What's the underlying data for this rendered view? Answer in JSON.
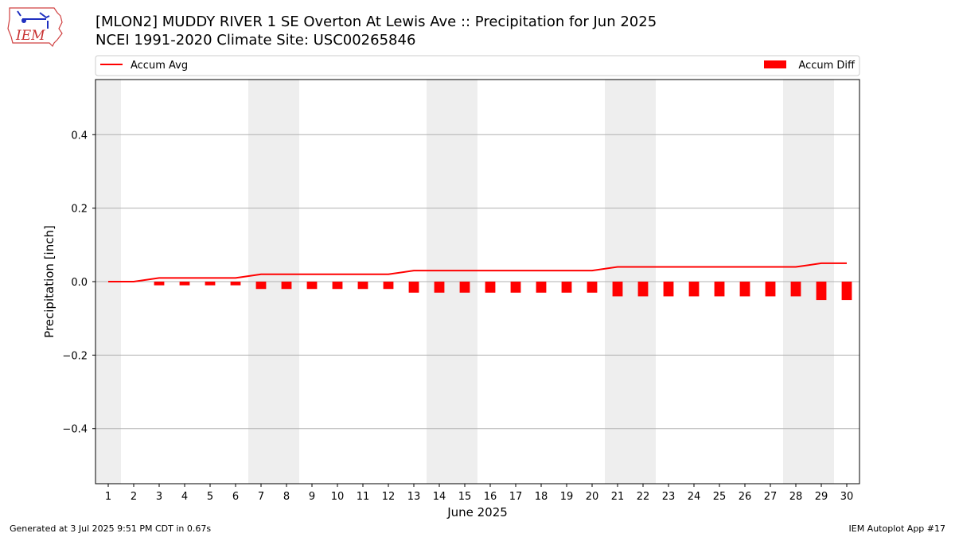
{
  "header": {
    "title_line1": "[MLON2] MUDDY RIVER 1 SE Overton At Lewis Ave :: Precipitation for Jun 2025",
    "title_line2": "NCEI 1991-2020 Climate Site: USC00265846"
  },
  "logo": {
    "text": "IEM",
    "icon": "iem-iowa-logo"
  },
  "footer": {
    "left": "Generated at 3 Jul 2025 9:51 PM CDT in 0.67s",
    "right": "IEM Autoplot App #17"
  },
  "colors": {
    "accum_avg": "#ff0000",
    "accum_diff": "#ff0000",
    "weekend_shade": "#eeeeee",
    "grid": "#b0b0b0"
  },
  "chart_data": {
    "type": "bar",
    "xlabel": "June 2025",
    "ylabel": "Precipitation [inch]",
    "ylim": [
      -0.55,
      0.55
    ],
    "yticks": [
      -0.4,
      -0.2,
      0.0,
      0.2,
      0.4
    ],
    "ytick_labels": [
      "−0.4",
      "−0.2",
      "0.0",
      "0.2",
      "0.4"
    ],
    "grid": "horizontal",
    "legend_placement": "top",
    "categories": [
      1,
      2,
      3,
      4,
      5,
      6,
      7,
      8,
      9,
      10,
      11,
      12,
      13,
      14,
      15,
      16,
      17,
      18,
      19,
      20,
      21,
      22,
      23,
      24,
      25,
      26,
      27,
      28,
      29,
      30
    ],
    "shaded_days": [
      1,
      7,
      8,
      14,
      15,
      21,
      22,
      28,
      29
    ],
    "series": [
      {
        "name": "Accum Avg",
        "kind": "line",
        "values": [
          0.0,
          0.0,
          0.01,
          0.01,
          0.01,
          0.01,
          0.02,
          0.02,
          0.02,
          0.02,
          0.02,
          0.02,
          0.03,
          0.03,
          0.03,
          0.03,
          0.03,
          0.03,
          0.03,
          0.03,
          0.04,
          0.04,
          0.04,
          0.04,
          0.04,
          0.04,
          0.04,
          0.04,
          0.05,
          0.05
        ]
      },
      {
        "name": "Accum Diff",
        "kind": "bar",
        "values": [
          0.0,
          0.0,
          -0.01,
          -0.01,
          -0.01,
          -0.01,
          -0.02,
          -0.02,
          -0.02,
          -0.02,
          -0.02,
          -0.02,
          -0.03,
          -0.03,
          -0.03,
          -0.03,
          -0.03,
          -0.03,
          -0.03,
          -0.03,
          -0.04,
          -0.04,
          -0.04,
          -0.04,
          -0.04,
          -0.04,
          -0.04,
          -0.04,
          -0.05,
          -0.05
        ]
      }
    ]
  }
}
